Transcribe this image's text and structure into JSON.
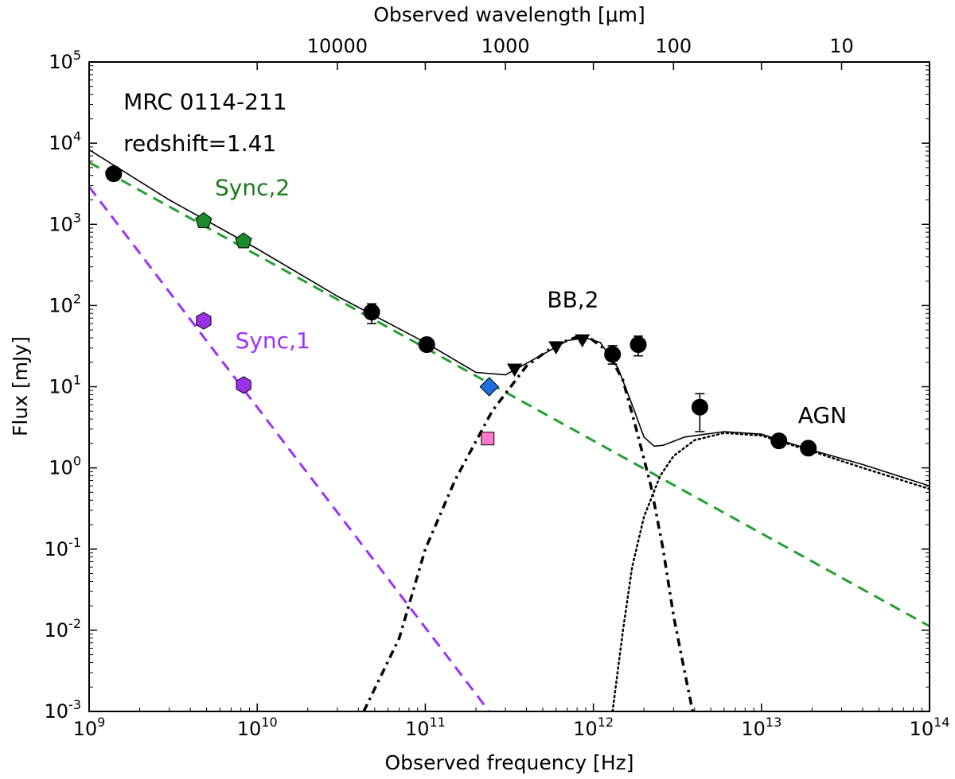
{
  "chart_data": {
    "type": "scatter",
    "title": "",
    "xlabel": "Observed frequency [Hz]",
    "ylabel": "Flux [mJy]",
    "top_xlabel": "Observed wavelength [μm]",
    "xscale": "log",
    "yscale": "log",
    "xlim": [
      1000000000.0,
      100000000000000.0
    ],
    "ylim": [
      0.001,
      100000.0
    ],
    "grid": false,
    "x_ticks": [
      {
        "value": 1000000000.0,
        "base": "10",
        "exp": "9"
      },
      {
        "value": 10000000000.0,
        "base": "10",
        "exp": "10"
      },
      {
        "value": 100000000000.0,
        "base": "10",
        "exp": "11"
      },
      {
        "value": 1000000000000.0,
        "base": "10",
        "exp": "12"
      },
      {
        "value": 10000000000000.0,
        "base": "10",
        "exp": "13"
      },
      {
        "value": 100000000000000.0,
        "base": "10",
        "exp": "14"
      }
    ],
    "y_ticks": [
      {
        "value": 0.001,
        "base": "10",
        "exp": "-3"
      },
      {
        "value": 0.01,
        "base": "10",
        "exp": "-2"
      },
      {
        "value": 0.1,
        "base": "10",
        "exp": "-1"
      },
      {
        "value": 1.0,
        "base": "10",
        "exp": "0"
      },
      {
        "value": 10.0,
        "base": "10",
        "exp": "1"
      },
      {
        "value": 100.0,
        "base": "10",
        "exp": "2"
      },
      {
        "value": 1000.0,
        "base": "10",
        "exp": "3"
      },
      {
        "value": 10000.0,
        "base": "10",
        "exp": "4"
      },
      {
        "value": 100000.0,
        "base": "10",
        "exp": "5"
      }
    ],
    "top_ticks": [
      {
        "label": "10000",
        "wavelength_um": 10000
      },
      {
        "label": "1000",
        "wavelength_um": 1000
      },
      {
        "label": "100",
        "wavelength_um": 100
      },
      {
        "label": "10",
        "wavelength_um": 10
      }
    ],
    "annotations": [
      {
        "text": "MRC 0114-211",
        "x": 1600000000.0,
        "y": 26000.0,
        "color": "#000000"
      },
      {
        "text": "redshift=1.41",
        "x": 1600000000.0,
        "y": 8000.0,
        "color": "#000000"
      },
      {
        "text": "Sync,2",
        "x": 5600000000.0,
        "y": 2300.0,
        "color": "#1a7a1a"
      },
      {
        "text": "Sync,1",
        "x": 7400000000.0,
        "y": 30,
        "color": "#9b30ff"
      },
      {
        "text": "BB,2",
        "x": 530000000000.0,
        "y": 95,
        "color": "#000000"
      },
      {
        "text": "AGN",
        "x": 16500000000000.0,
        "y": 3.6,
        "color": "#000000"
      }
    ],
    "series": [
      {
        "kind": "curve",
        "style": "solid",
        "color": "#000000",
        "width": 1.6,
        "points": [
          [
            1000000000.0,
            8300
          ],
          [
            3000000000.0,
            2000
          ],
          [
            10000000000.0,
            500
          ],
          [
            30000000000.0,
            130
          ],
          [
            100000000000.0,
            35
          ],
          [
            200000000000.0,
            15
          ],
          [
            300000000000.0,
            14
          ],
          [
            500000000000.0,
            25
          ],
          [
            700000000000.0,
            37
          ],
          [
            900000000000.0,
            40
          ],
          [
            1100000000000.0,
            35
          ],
          [
            1400000000000.0,
            17
          ],
          [
            1700000000000.0,
            6
          ],
          [
            2000000000000.0,
            2.4
          ],
          [
            2300000000000.0,
            1.85
          ],
          [
            2600000000000.0,
            1.9
          ],
          [
            3500000000000.0,
            2.4
          ],
          [
            6000000000000.0,
            2.8
          ],
          [
            10000000000000.0,
            2.6
          ],
          [
            20000000000000.0,
            1.65
          ],
          [
            40000000000000.0,
            1.1
          ],
          [
            100000000000000.0,
            0.6
          ]
        ]
      },
      {
        "kind": "curve",
        "style": "dashed",
        "color": "#22a02f",
        "width": 3,
        "points": [
          [
            1000000000.0,
            5800
          ],
          [
            100000000000000.0,
            0.0112
          ]
        ]
      },
      {
        "kind": "curve",
        "style": "dashed",
        "color": "#9b30ff",
        "width": 3,
        "points": [
          [
            1000000000.0,
            2900
          ],
          [
            240000000000.0,
            0.001
          ]
        ]
      },
      {
        "kind": "curve",
        "style": "dashdot",
        "color": "#000000",
        "width": 3.5,
        "points": [
          [
            43000000000.0,
            0.001
          ],
          [
            70000000000.0,
            0.008
          ],
          [
            100000000000.0,
            0.1
          ],
          [
            150000000000.0,
            0.7
          ],
          [
            250000000000.0,
            5
          ],
          [
            400000000000.0,
            18
          ],
          [
            600000000000.0,
            33
          ],
          [
            800000000000.0,
            41
          ],
          [
            950000000000.0,
            40
          ],
          [
            1200000000000.0,
            28
          ],
          [
            1500000000000.0,
            12
          ],
          [
            1800000000000.0,
            3
          ],
          [
            2200000000000.0,
            0.6
          ],
          [
            2600000000000.0,
            0.1
          ],
          [
            3000000000000.0,
            0.015
          ],
          [
            3500000000000.0,
            0.003
          ],
          [
            3900000000000.0,
            0.001
          ]
        ]
      },
      {
        "kind": "curve",
        "style": "dotted",
        "color": "#000000",
        "width": 2.5,
        "points": [
          [
            1300000000000.0,
            0.001
          ],
          [
            1500000000000.0,
            0.01
          ],
          [
            1700000000000.0,
            0.06
          ],
          [
            2000000000000.0,
            0.25
          ],
          [
            2500000000000.0,
            0.8
          ],
          [
            3000000000000.0,
            1.4
          ],
          [
            4000000000000.0,
            2.2
          ],
          [
            6000000000000.0,
            2.7
          ],
          [
            10000000000000.0,
            2.5
          ],
          [
            20000000000000.0,
            1.6
          ],
          [
            40000000000000.0,
            1.0
          ],
          [
            100000000000000.0,
            0.55
          ]
        ]
      },
      {
        "kind": "points",
        "name": "",
        "marker": "circle",
        "color": "#000000",
        "points": [
          {
            "x": 1400000000.0,
            "y": 4200
          },
          {
            "x": 48000000000.0,
            "y": 83,
            "yerr": [
              60,
              105
            ]
          },
          {
            "x": 102000000000.0,
            "y": 33
          },
          {
            "x": 1300000000000.0,
            "y": 25,
            "yerr": [
              19,
              32
            ]
          },
          {
            "x": 1850000000000.0,
            "y": 33,
            "yerr": [
              24,
              42
            ]
          },
          {
            "x": 4300000000000.0,
            "y": 5.6,
            "yerr": [
              2.8,
              8.2
            ]
          },
          {
            "x": 12700000000000.0,
            "y": 2.15
          },
          {
            "x": 19000000000000.0,
            "y": 1.75
          }
        ]
      },
      {
        "kind": "points",
        "name": "",
        "marker": "triangle-down",
        "color": "#000000",
        "points": [
          {
            "x": 340000000000.0,
            "y": 17
          },
          {
            "x": 600000000000.0,
            "y": 32
          },
          {
            "x": 860000000000.0,
            "y": 39
          }
        ]
      },
      {
        "kind": "points",
        "name": "",
        "marker": "pentagon",
        "color": "#1a8a2a",
        "points": [
          {
            "x": 4800000000.0,
            "y": 1100
          },
          {
            "x": 8300000000.0,
            "y": 620
          }
        ]
      },
      {
        "kind": "points",
        "name": "",
        "marker": "hexagon",
        "color": "#9b30e8",
        "points": [
          {
            "x": 4800000000.0,
            "y": 65
          },
          {
            "x": 8300000000.0,
            "y": 10.5
          }
        ]
      },
      {
        "kind": "points",
        "name": "",
        "marker": "diamond",
        "color": "#1f6fe0",
        "points": [
          {
            "x": 240000000000.0,
            "y": 10
          }
        ]
      },
      {
        "kind": "points",
        "name": "",
        "marker": "square",
        "color": "#ff77c8",
        "points": [
          {
            "x": 235000000000.0,
            "y": 2.3
          }
        ]
      }
    ]
  }
}
